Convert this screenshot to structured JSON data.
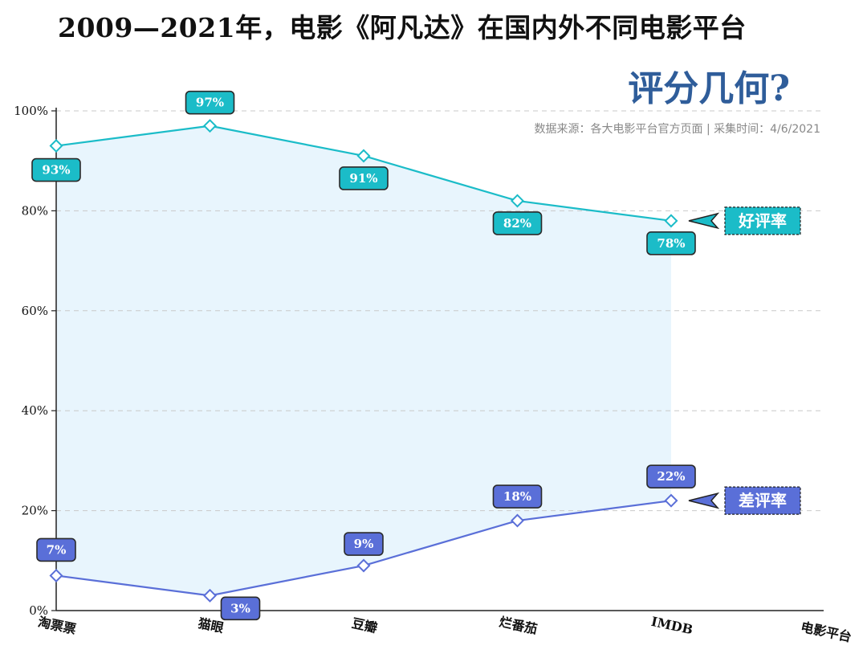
{
  "chart_data": {
    "type": "line",
    "title": "2009—2021年，电影《阿凡达》在国内外不同电影平台",
    "subtitle": "评分几何?",
    "source": "数据来源：各大电影平台官方页面 | 采集时间：4/6/2021",
    "xlabel": "电影平台",
    "ylabel": "",
    "categories": [
      "淘票票",
      "猫眼",
      "豆瓣",
      "烂番茄",
      "IMDB"
    ],
    "yticks": [
      "0%",
      "20%",
      "40%",
      "60%",
      "80%",
      "100%"
    ],
    "ylim": [
      0,
      100
    ],
    "grid": true,
    "series": [
      {
        "name": "好评率",
        "values": [
          93,
          97,
          91,
          82,
          78
        ],
        "labels": [
          "93%",
          "97%",
          "91%",
          "82%",
          "78%"
        ],
        "color": "#1bbcc8"
      },
      {
        "name": "差评率",
        "values": [
          7,
          3,
          9,
          18,
          22
        ],
        "labels": [
          "7%",
          "3%",
          "9%",
          "18%",
          "22%"
        ],
        "color": "#5a6fd8"
      }
    ],
    "area_color": "#e8f5fd"
  }
}
